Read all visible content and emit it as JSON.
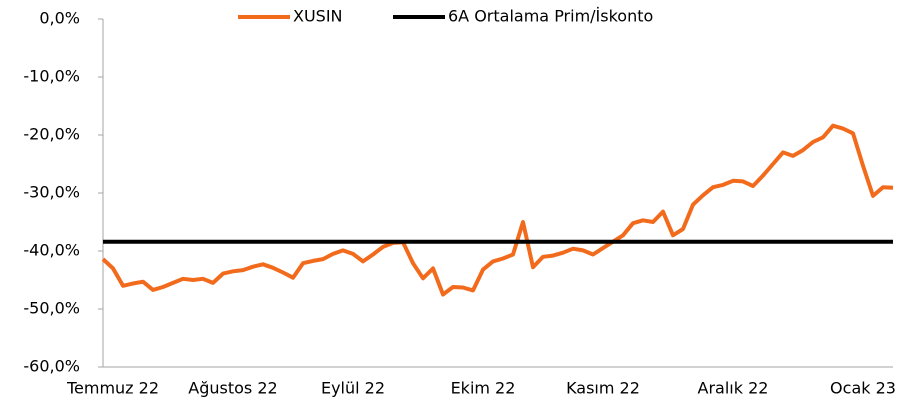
{
  "chart_data": {
    "type": "line",
    "categories": [
      null,
      "Temmuz 22",
      null,
      null,
      null,
      null,
      null,
      null,
      null,
      null,
      null,
      null,
      null,
      "Ağustos 22",
      null,
      null,
      null,
      null,
      null,
      null,
      null,
      null,
      null,
      null,
      null,
      "Eylül 22",
      null,
      null,
      null,
      null,
      null,
      null,
      null,
      null,
      null,
      null,
      null,
      null,
      "Ekim 22",
      null,
      null,
      null,
      null,
      null,
      null,
      null,
      null,
      null,
      null,
      null,
      "Kasım 22",
      null,
      null,
      null,
      null,
      null,
      null,
      null,
      null,
      null,
      null,
      null,
      null,
      "Aralık 22",
      null,
      null,
      null,
      null,
      null,
      null,
      null,
      null,
      null,
      null,
      null,
      null,
      "Ocak 23",
      null,
      null,
      null
    ],
    "series": [
      {
        "name": "XUSIN",
        "color": "#f26b1d",
        "values": [
          -41.4,
          -43.0,
          -46.0,
          -45.6,
          -45.3,
          -46.7,
          -46.2,
          -45.5,
          -44.8,
          -45.0,
          -44.8,
          -45.5,
          -43.9,
          -43.5,
          -43.3,
          -42.7,
          -42.3,
          -42.9,
          -43.7,
          -44.6,
          -42.1,
          -41.7,
          -41.4,
          -40.5,
          -39.9,
          -40.5,
          -41.8,
          -40.6,
          -39.3,
          -38.6,
          -38.5,
          -42.1,
          -44.7,
          -43.0,
          -47.5,
          -46.2,
          -46.3,
          -46.8,
          -43.2,
          -41.8,
          -41.3,
          -40.6,
          -35.0,
          -42.8,
          -41.0,
          -40.8,
          -40.3,
          -39.6,
          -39.9,
          -40.6,
          -39.5,
          -38.4,
          -37.3,
          -35.2,
          -34.7,
          -35.0,
          -33.2,
          -37.3,
          -36.2,
          -32.0,
          -30.4,
          -29.0,
          -28.6,
          -27.9,
          -28.0,
          -28.8,
          -27.0,
          -25.0,
          -23.0,
          -23.6,
          -22.6,
          -21.2,
          -20.4,
          -18.4,
          -18.9,
          -19.7,
          -25.3,
          -30.5,
          -29.0,
          -29.1
        ]
      },
      {
        "name": "6A Ortalama Prim/İskonto",
        "color": "#000000",
        "values": [
          -38.4,
          -38.4,
          -38.4,
          -38.4,
          -38.4,
          -38.4,
          -38.4,
          -38.4,
          -38.4,
          -38.4,
          -38.4,
          -38.4,
          -38.4,
          -38.4,
          -38.4,
          -38.4,
          -38.4,
          -38.4,
          -38.4,
          -38.4,
          -38.4,
          -38.4,
          -38.4,
          -38.4,
          -38.4,
          -38.4,
          -38.4,
          -38.4,
          -38.4,
          -38.4,
          -38.4,
          -38.4,
          -38.4,
          -38.4,
          -38.4,
          -38.4,
          -38.4,
          -38.4,
          -38.4,
          -38.4,
          -38.4,
          -38.4,
          -38.4,
          -38.4,
          -38.4,
          -38.4,
          -38.4,
          -38.4,
          -38.4,
          -38.4,
          -38.4,
          -38.4,
          -38.4,
          -38.4,
          -38.4,
          -38.4,
          -38.4,
          -38.4,
          -38.4,
          -38.4,
          -38.4,
          -38.4,
          -38.4,
          -38.4,
          -38.4,
          -38.4,
          -38.4,
          -38.4,
          -38.4,
          -38.4,
          -38.4,
          -38.4,
          -38.4,
          -38.4,
          -38.4,
          -38.4,
          -38.4,
          -38.4,
          -38.4,
          -38.4
        ]
      }
    ],
    "ylim": [
      -60,
      0
    ],
    "yticks": [
      {
        "value": 0,
        "label": "0,0%"
      },
      {
        "value": -10,
        "label": "-10,0%"
      },
      {
        "value": -20,
        "label": "-20,0%"
      },
      {
        "value": -30,
        "label": "-30,0%"
      },
      {
        "value": -40,
        "label": "-40,0%"
      },
      {
        "value": -50,
        "label": "-50,0%"
      },
      {
        "value": -60,
        "label": "-60,0%"
      }
    ],
    "grid": false,
    "legend": "top"
  }
}
